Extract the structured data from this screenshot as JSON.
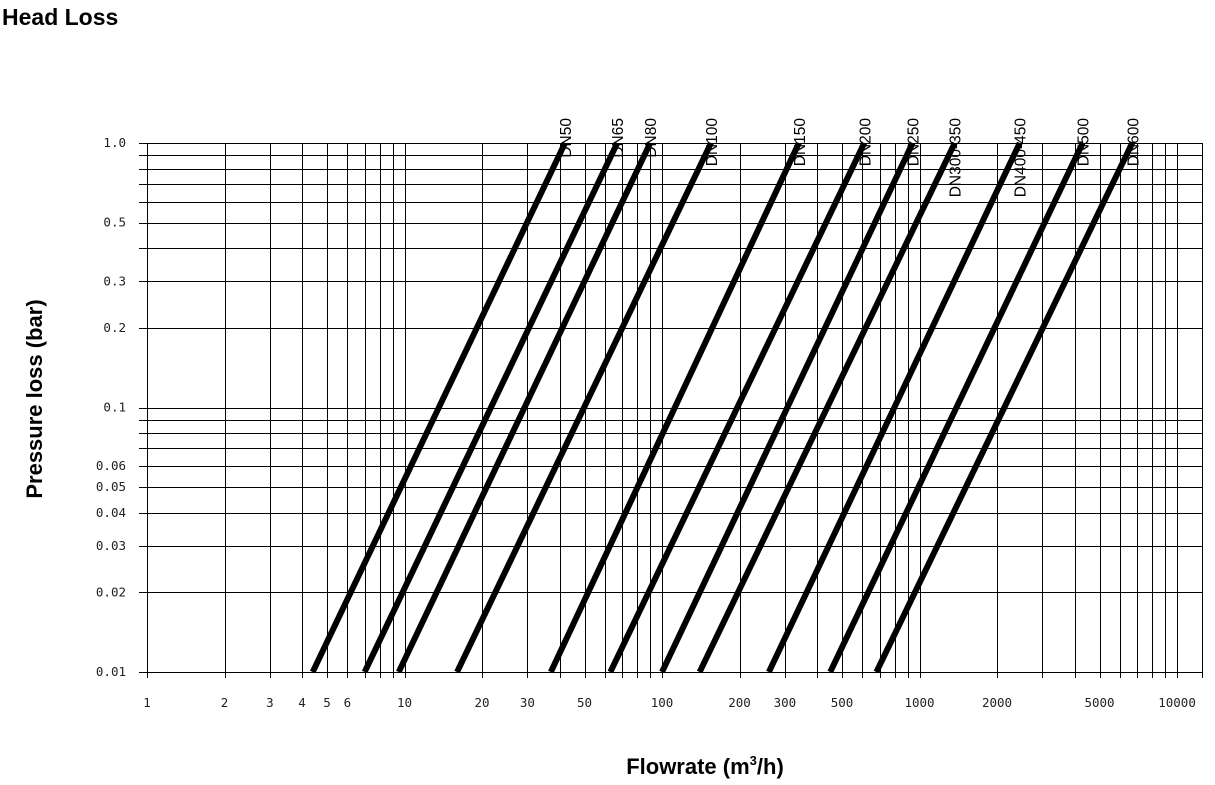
{
  "chart_data": {
    "type": "line",
    "title": "Head Loss",
    "xlabel": "Flowrate (m³/h)",
    "xlabel_base": "Flowrate (m",
    "xlabel_sup": "3",
    "xlabel_rest": "/h)",
    "ylabel": "Pressure loss (bar)",
    "x_scale": "log",
    "y_scale": "log",
    "xlim": [
      1,
      12500
    ],
    "ylim": [
      0.01,
      1.0
    ],
    "grid": true,
    "legend": "none",
    "x_ticks": [
      {
        "value": 1,
        "label": "1"
      },
      {
        "value": 2,
        "label": "2"
      },
      {
        "value": 3,
        "label": "3"
      },
      {
        "value": 4,
        "label": "4"
      },
      {
        "value": 5,
        "label": "5"
      },
      {
        "value": 6,
        "label": "6"
      },
      {
        "value": 10,
        "label": "10"
      },
      {
        "value": 20,
        "label": "20"
      },
      {
        "value": 30,
        "label": "30"
      },
      {
        "value": 50,
        "label": "50"
      },
      {
        "value": 100,
        "label": "100"
      },
      {
        "value": 200,
        "label": "200"
      },
      {
        "value": 300,
        "label": "300"
      },
      {
        "value": 500,
        "label": "500"
      },
      {
        "value": 1000,
        "label": "1000"
      },
      {
        "value": 2000,
        "label": "2000"
      },
      {
        "value": 5000,
        "label": "5000"
      },
      {
        "value": 10000,
        "label": "10000"
      }
    ],
    "x_gridlines": [
      1,
      2,
      3,
      4,
      5,
      6,
      7,
      8,
      9,
      10,
      20,
      30,
      40,
      50,
      60,
      70,
      80,
      90,
      100,
      200,
      300,
      400,
      500,
      600,
      700,
      800,
      900,
      1000,
      2000,
      3000,
      4000,
      5000,
      6000,
      7000,
      8000,
      9000,
      10000,
      12500
    ],
    "y_ticks": [
      {
        "value": 1.0,
        "label": "1.0"
      },
      {
        "value": 0.5,
        "label": "0.5"
      },
      {
        "value": 0.3,
        "label": "0.3"
      },
      {
        "value": 0.2,
        "label": "0.2"
      },
      {
        "value": 0.1,
        "label": "0.1"
      },
      {
        "value": 0.06,
        "label": "0.06"
      },
      {
        "value": 0.05,
        "label": "0.05"
      },
      {
        "value": 0.04,
        "label": "0.04"
      },
      {
        "value": 0.03,
        "label": "0.03"
      },
      {
        "value": 0.02,
        "label": "0.02"
      },
      {
        "value": 0.01,
        "label": "0.01"
      }
    ],
    "y_gridlines": [
      1.0,
      0.9,
      0.8,
      0.7,
      0.6,
      0.5,
      0.4,
      0.3,
      0.2,
      0.1,
      0.09,
      0.08,
      0.07,
      0.06,
      0.05,
      0.04,
      0.03,
      0.02,
      0.01
    ],
    "series": [
      {
        "name": "DN50",
        "points": [
          [
            4.4,
            0.01
          ],
          [
            42,
            1.0
          ]
        ]
      },
      {
        "name": "DN65",
        "points": [
          [
            7.0,
            0.01
          ],
          [
            67,
            1.0
          ]
        ]
      },
      {
        "name": "DN80",
        "points": [
          [
            9.5,
            0.01
          ],
          [
            90,
            1.0
          ]
        ]
      },
      {
        "name": "DN100",
        "points": [
          [
            16,
            0.01
          ],
          [
            155,
            1.0
          ]
        ]
      },
      {
        "name": "DN150",
        "points": [
          [
            37,
            0.01
          ],
          [
            340,
            1.0
          ]
        ]
      },
      {
        "name": "DN200",
        "points": [
          [
            63,
            0.01
          ],
          [
            610,
            1.0
          ]
        ]
      },
      {
        "name": "DN250",
        "points": [
          [
            100,
            0.01
          ],
          [
            940,
            1.0
          ]
        ]
      },
      {
        "name": "DN300-350",
        "points": [
          [
            140,
            0.01
          ],
          [
            1370,
            1.0
          ]
        ]
      },
      {
        "name": "DN400-450",
        "points": [
          [
            260,
            0.01
          ],
          [
            2450,
            1.0
          ]
        ]
      },
      {
        "name": "DN500",
        "points": [
          [
            450,
            0.01
          ],
          [
            4300,
            1.0
          ]
        ]
      },
      {
        "name": "DN600",
        "points": [
          [
            680,
            0.01
          ],
          [
            6700,
            1.0
          ]
        ]
      }
    ]
  }
}
